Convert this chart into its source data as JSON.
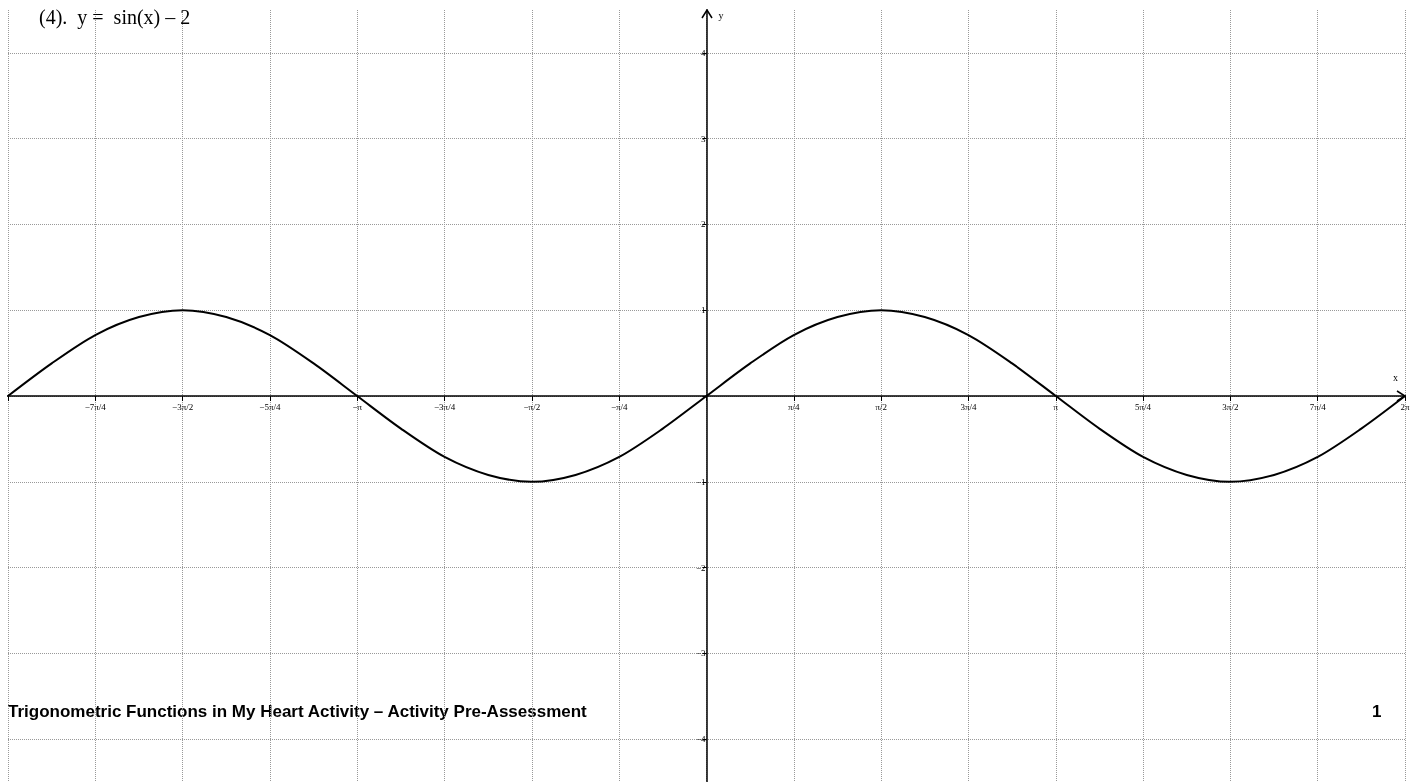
{
  "chart_data": {
    "type": "line",
    "title": "(4).  y =  sin(x) – 2",
    "xlabel": "x",
    "ylabel": "y",
    "annotations": [
      "Trigonometric Functions in My Heart Activity – Activity Pre-Assessment",
      "1"
    ],
    "xlim": [
      -6.283,
      6.283
    ],
    "ylim": [
      -4.5,
      4.5
    ],
    "xticks": [
      {
        "value": -6.283,
        "label": null
      },
      {
        "value": -5.498,
        "label": "−7π/4"
      },
      {
        "value": -4.712,
        "label": "−3π/2"
      },
      {
        "value": -3.927,
        "label": "−5π/4"
      },
      {
        "value": -3.142,
        "label": "−π"
      },
      {
        "value": -2.356,
        "label": "−3π/4"
      },
      {
        "value": -1.571,
        "label": "−π/2"
      },
      {
        "value": -0.785,
        "label": "−π/4"
      },
      {
        "value": 0,
        "label": null
      },
      {
        "value": 0.785,
        "label": "π/4"
      },
      {
        "value": 1.571,
        "label": "π/2"
      },
      {
        "value": 2.356,
        "label": "3π/4"
      },
      {
        "value": 3.142,
        "label": "π"
      },
      {
        "value": 3.927,
        "label": "5π/4"
      },
      {
        "value": 4.712,
        "label": "3π/2"
      },
      {
        "value": 5.498,
        "label": "7π/4"
      },
      {
        "value": 6.283,
        "label": "2π"
      }
    ],
    "yticks": [
      {
        "value": -4,
        "label": "−4"
      },
      {
        "value": -3,
        "label": "−3"
      },
      {
        "value": -2,
        "label": "−2"
      },
      {
        "value": -1,
        "label": "−1"
      },
      {
        "value": 0,
        "label": null
      },
      1,
      2,
      3,
      4
    ],
    "grid": true,
    "marker": "none",
    "line_style": "solid",
    "series": [
      {
        "color": "#000000",
        "x": [
          -6.283,
          -5.89,
          -5.498,
          -5.105,
          -4.712,
          -4.32,
          -3.927,
          -3.534,
          -3.142,
          -2.749,
          -2.356,
          -1.963,
          -1.571,
          -1.178,
          -0.785,
          -0.393,
          0,
          0.393,
          0.785,
          1.178,
          1.571,
          1.963,
          2.356,
          2.749,
          3.142,
          3.534,
          3.927,
          4.32,
          4.712,
          5.105,
          5.498,
          5.89,
          6.283
        ],
        "values": [
          0,
          0.38,
          0.71,
          0.92,
          1,
          0.92,
          0.71,
          0.38,
          0,
          -0.38,
          -0.71,
          -0.92,
          -1,
          -0.92,
          -0.71,
          -0.38,
          0,
          0.38,
          0.71,
          0.92,
          1,
          0.92,
          0.71,
          0.38,
          0,
          -0.38,
          -0.71,
          -0.92,
          -1,
          -0.92,
          -0.71,
          -0.38,
          0
        ]
      }
    ]
  }
}
